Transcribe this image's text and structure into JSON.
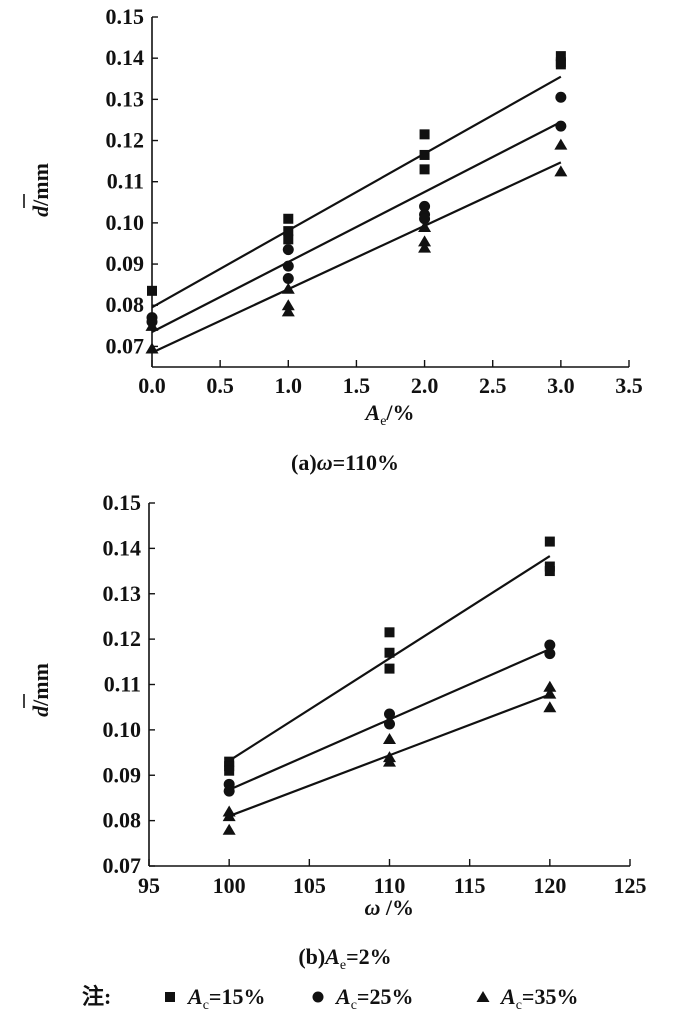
{
  "chart_data": [
    {
      "type": "scatter",
      "panel": "a",
      "caption": {
        "prefix": "(a)",
        "var": "ω",
        "rest": "=110%"
      },
      "xlabel": {
        "var": "A",
        "sub": "e",
        "rest": "/%"
      },
      "ylabel": {
        "var": "d",
        "rest": "/mm"
      },
      "xlim": [
        0,
        3.5
      ],
      "ylim": [
        0.065,
        0.15
      ],
      "xticks": [
        "0.0",
        "0.5",
        "1.0",
        "1.5",
        "2.0",
        "2.5",
        "3.0",
        "3.5"
      ],
      "xtick_values": [
        0,
        0.5,
        1,
        1.5,
        2,
        2.5,
        3,
        3.5
      ],
      "yticks": [
        "0.07",
        "0.08",
        "0.09",
        "0.10",
        "0.11",
        "0.12",
        "0.13",
        "0.14",
        "0.15"
      ],
      "ytick_values": [
        0.07,
        0.08,
        0.09,
        0.1,
        0.11,
        0.12,
        0.13,
        0.14,
        0.15
      ],
      "series": [
        {
          "name": "Ac=15%",
          "marker": "square",
          "points": [
            [
              0,
              0.0835
            ],
            [
              1,
              0.101
            ],
            [
              1,
              0.098
            ],
            [
              1,
              0.096
            ],
            [
              2,
              0.1215
            ],
            [
              2,
              0.1165
            ],
            [
              2,
              0.113
            ],
            [
              3,
              0.1405
            ],
            [
              3,
              0.139
            ],
            [
              3,
              0.1385
            ]
          ],
          "fit": [
            [
              0,
              0.0795
            ],
            [
              3,
              0.1355
            ]
          ]
        },
        {
          "name": "Ac=25%",
          "marker": "circle",
          "points": [
            [
              0,
              0.077
            ],
            [
              0,
              0.076
            ],
            [
              1,
              0.0935
            ],
            [
              1,
              0.0895
            ],
            [
              1,
              0.0865
            ],
            [
              2,
              0.104
            ],
            [
              2,
              0.102
            ],
            [
              2,
              0.101
            ],
            [
              3,
              0.1305
            ],
            [
              3,
              0.1235
            ]
          ],
          "fit": [
            [
              0,
              0.0735
            ],
            [
              3,
              0.1245
            ]
          ]
        },
        {
          "name": "Ac=35%",
          "marker": "triangle",
          "points": [
            [
              0,
              0.075
            ],
            [
              0,
              0.0695
            ],
            [
              1,
              0.084
            ],
            [
              1,
              0.08
            ],
            [
              1,
              0.0785
            ],
            [
              2,
              0.099
            ],
            [
              2,
              0.0955
            ],
            [
              2,
              0.094
            ],
            [
              3,
              0.119
            ],
            [
              3,
              0.1125
            ]
          ],
          "fit": [
            [
              0,
              0.0685
            ],
            [
              3,
              0.1147
            ]
          ]
        }
      ]
    },
    {
      "type": "scatter",
      "panel": "b",
      "caption": {
        "prefix": "(b)",
        "var": "A",
        "sub": "e",
        "rest": "=2%"
      },
      "xlabel": {
        "var": "ω",
        "rest": " /%"
      },
      "ylabel": {
        "var": "d",
        "rest": "/mm"
      },
      "xlim": [
        95,
        125
      ],
      "ylim": [
        0.07,
        0.15
      ],
      "xticks": [
        "95",
        "100",
        "105",
        "110",
        "115",
        "120",
        "125"
      ],
      "xtick_values": [
        95,
        100,
        105,
        110,
        115,
        120,
        125
      ],
      "yticks": [
        "0.07",
        "0.08",
        "0.09",
        "0.10",
        "0.11",
        "0.12",
        "0.13",
        "0.14",
        "0.15"
      ],
      "ytick_values": [
        0.07,
        0.08,
        0.09,
        0.1,
        0.11,
        0.12,
        0.13,
        0.14,
        0.15
      ],
      "series": [
        {
          "name": "Ac=15%",
          "marker": "square",
          "points": [
            [
              100,
              0.093
            ],
            [
              100,
              0.092
            ],
            [
              100,
              0.091
            ],
            [
              110,
              0.1215
            ],
            [
              110,
              0.117
            ],
            [
              110,
              0.1135
            ],
            [
              120,
              0.1415
            ],
            [
              120,
              0.136
            ],
            [
              120,
              0.135
            ]
          ],
          "fit": [
            [
              100,
              0.0932
            ],
            [
              120,
              0.1383
            ]
          ]
        },
        {
          "name": "Ac=25%",
          "marker": "circle",
          "points": [
            [
              100,
              0.088
            ],
            [
              100,
              0.0865
            ],
            [
              110,
              0.1035
            ],
            [
              110,
              0.1013
            ],
            [
              120,
              0.1187
            ],
            [
              120,
              0.1168
            ]
          ],
          "fit": [
            [
              100,
              0.0868
            ],
            [
              120,
              0.1178
            ]
          ]
        },
        {
          "name": "Ac=35%",
          "marker": "triangle",
          "points": [
            [
              100,
              0.082
            ],
            [
              100,
              0.081
            ],
            [
              100,
              0.078
            ],
            [
              110,
              0.098
            ],
            [
              110,
              0.094
            ],
            [
              110,
              0.093
            ],
            [
              120,
              0.1095
            ],
            [
              120,
              0.108
            ],
            [
              120,
              0.105
            ]
          ],
          "fit": [
            [
              100,
              0.081
            ],
            [
              120,
              0.1078
            ]
          ]
        }
      ]
    }
  ],
  "legend": {
    "note": "注:",
    "placement": "bottom",
    "items": [
      {
        "marker": "square",
        "var": "A",
        "sub": "c",
        "rest": "=15%"
      },
      {
        "marker": "circle",
        "var": "A",
        "sub": "c",
        "rest": "=25%"
      },
      {
        "marker": "triangle",
        "var": "A",
        "sub": "c",
        "rest": "=35%"
      }
    ]
  }
}
